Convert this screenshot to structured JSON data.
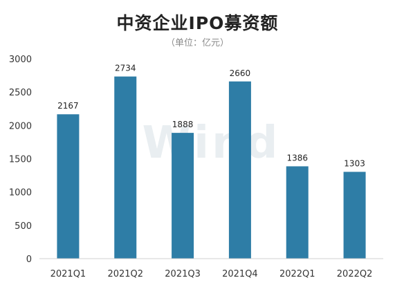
{
  "chart_data": {
    "type": "bar",
    "title": "中资企业IPO募资额",
    "subtitle": "（单位：亿元）",
    "categories": [
      "2021Q1",
      "2021Q2",
      "2021Q3",
      "2021Q4",
      "2022Q1",
      "2022Q2"
    ],
    "values": [
      2167,
      2734,
      1888,
      2660,
      1386,
      1303
    ],
    "ylim": [
      0,
      3000
    ],
    "yticks": [
      0,
      500,
      1000,
      1500,
      2000,
      2500,
      3000
    ],
    "grid": false,
    "bar_color": "#2e7da6",
    "watermark": "Wind"
  }
}
